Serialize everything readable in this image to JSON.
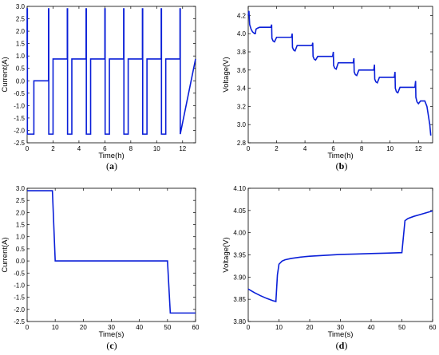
{
  "chart_data": [
    {
      "type": "line",
      "caption": "a",
      "xlabel": "Time(h)",
      "ylabel": "Current(A)",
      "xlim": [
        0,
        13
      ],
      "ylim": [
        -2.5,
        3.0
      ],
      "xticks": [
        "0",
        "2",
        "4",
        "6",
        "8",
        "10",
        "12"
      ],
      "yticks": [
        "-2.5",
        "-2.0",
        "-1.5",
        "-1.0",
        "-0.5",
        "0.0",
        "0.5",
        "1.0",
        "1.5",
        "2.0",
        "2.5",
        "3.0"
      ],
      "line_color": "#0a1fd8",
      "series": [
        {
          "x": [
            0,
            0,
            0.02,
            0.02,
            0.52,
            0.52,
            1.65,
            1.65,
            1.67,
            1.67,
            2.0,
            2.0,
            3.1,
            3.1,
            3.12,
            3.12,
            3.45,
            3.45,
            4.55,
            4.55,
            4.57,
            4.57,
            4.9,
            4.9,
            6.0,
            6.0,
            6.02,
            6.02,
            6.35,
            6.35,
            7.45,
            7.45,
            7.47,
            7.47,
            7.8,
            7.8,
            8.9,
            8.9,
            8.92,
            8.92,
            9.25,
            9.25,
            10.35,
            10.35,
            10.37,
            10.37,
            10.7,
            10.7,
            11.8,
            11.8,
            11.82,
            11.82,
            13.0
          ],
          "y": [
            0.9,
            2.9,
            2.9,
            -2.15,
            -2.15,
            0,
            0,
            2.9,
            2.9,
            -2.15,
            -2.15,
            0.88,
            0.88,
            2.9,
            2.9,
            -2.15,
            -2.15,
            0.88,
            0.88,
            2.9,
            2.9,
            -2.15,
            -2.15,
            0.88,
            0.88,
            2.9,
            2.9,
            -2.15,
            -2.15,
            0.88,
            0.88,
            2.9,
            2.9,
            -2.15,
            -2.15,
            0.88,
            0.88,
            2.9,
            2.9,
            -2.15,
            -2.15,
            0.88,
            0.88,
            2.9,
            2.9,
            -2.15,
            -2.15,
            0.88,
            0.88,
            2.9,
            2.9,
            -2.15,
            0.88
          ]
        }
      ]
    },
    {
      "type": "line",
      "caption": "b",
      "xlabel": "Time(h)",
      "ylabel": "Voltage(V)",
      "xlim": [
        0,
        13
      ],
      "ylim": [
        2.8,
        4.3
      ],
      "xticks": [
        "0",
        "2",
        "4",
        "6",
        "8",
        "10",
        "12"
      ],
      "yticks": [
        "2.8",
        "3.0",
        "3.2",
        "3.4",
        "3.6",
        "3.8",
        "4.0",
        "4.2"
      ],
      "line_color": "#0a1fd8",
      "series": [
        {
          "x": [
            0,
            0.05,
            0.1,
            0.2,
            0.3,
            0.45,
            0.5,
            0.55,
            0.65,
            0.8,
            1.6,
            1.65,
            1.67,
            1.75,
            1.85,
            2.0,
            3.05,
            3.1,
            3.12,
            3.2,
            3.3,
            3.45,
            4.5,
            4.55,
            4.57,
            4.65,
            4.75,
            4.9,
            5.95,
            6.0,
            6.02,
            6.1,
            6.2,
            6.35,
            7.4,
            7.45,
            7.47,
            7.55,
            7.65,
            7.8,
            8.85,
            8.9,
            8.92,
            9.0,
            9.1,
            9.25,
            10.3,
            10.35,
            10.37,
            10.45,
            10.55,
            10.7,
            11.75,
            11.8,
            11.82,
            11.9,
            12.0,
            12.15,
            12.45,
            12.6,
            12.7,
            12.8,
            12.87
          ],
          "y": [
            4.2,
            4.25,
            4.1,
            4.05,
            4.02,
            4.0,
            4.0,
            4.05,
            4.06,
            4.07,
            4.07,
            4.1,
            3.95,
            3.92,
            3.91,
            3.96,
            3.96,
            4.0,
            3.85,
            3.82,
            3.81,
            3.87,
            3.87,
            3.9,
            3.75,
            3.72,
            3.71,
            3.75,
            3.75,
            3.8,
            3.65,
            3.62,
            3.61,
            3.68,
            3.68,
            3.73,
            3.58,
            3.55,
            3.54,
            3.6,
            3.6,
            3.66,
            3.5,
            3.47,
            3.46,
            3.52,
            3.52,
            3.58,
            3.4,
            3.36,
            3.35,
            3.41,
            3.41,
            3.48,
            3.3,
            3.25,
            3.23,
            3.26,
            3.26,
            3.2,
            3.1,
            3.0,
            2.88
          ]
        }
      ]
    },
    {
      "type": "line",
      "caption": "c",
      "xlabel": "Time(s)",
      "ylabel": "Current(A)",
      "xlim": [
        0,
        60
      ],
      "ylim": [
        -2.5,
        3.0
      ],
      "xticks": [
        "0",
        "10",
        "20",
        "30",
        "40",
        "50",
        "60"
      ],
      "yticks": [
        "-2.5",
        "-2.0",
        "-1.5",
        "-1.0",
        "-0.5",
        "0.0",
        "0.5",
        "1.0",
        "1.5",
        "2.0",
        "2.5",
        "3.0"
      ],
      "line_color": "#0a1fd8",
      "series": [
        {
          "x": [
            0,
            9,
            10,
            50,
            51,
            60
          ],
          "y": [
            2.9,
            2.9,
            0,
            0,
            -2.15,
            -2.15
          ]
        }
      ]
    },
    {
      "type": "line",
      "caption": "d",
      "xlabel": "Time(s)",
      "ylabel": "Voltage(V)",
      "xlim": [
        0,
        60
      ],
      "ylim": [
        3.8,
        4.1
      ],
      "xticks": [
        "0",
        "10",
        "20",
        "30",
        "40",
        "50",
        "60"
      ],
      "yticks": [
        "3.80",
        "3.85",
        "3.90",
        "3.95",
        "4.00",
        "4.05",
        "4.10"
      ],
      "line_color": "#0a1fd8",
      "series": [
        {
          "x": [
            0,
            2,
            4,
            6,
            8,
            9,
            9.5,
            10,
            11,
            12,
            14,
            17,
            20,
            25,
            30,
            35,
            40,
            45,
            50,
            51,
            52,
            54,
            56,
            58,
            60
          ],
          "y": [
            3.873,
            3.865,
            3.858,
            3.852,
            3.847,
            3.845,
            3.905,
            3.929,
            3.936,
            3.939,
            3.942,
            3.945,
            3.947,
            3.949,
            3.951,
            3.952,
            3.953,
            3.954,
            3.955,
            4.027,
            4.032,
            4.037,
            4.041,
            4.045,
            4.049
          ]
        }
      ]
    }
  ]
}
